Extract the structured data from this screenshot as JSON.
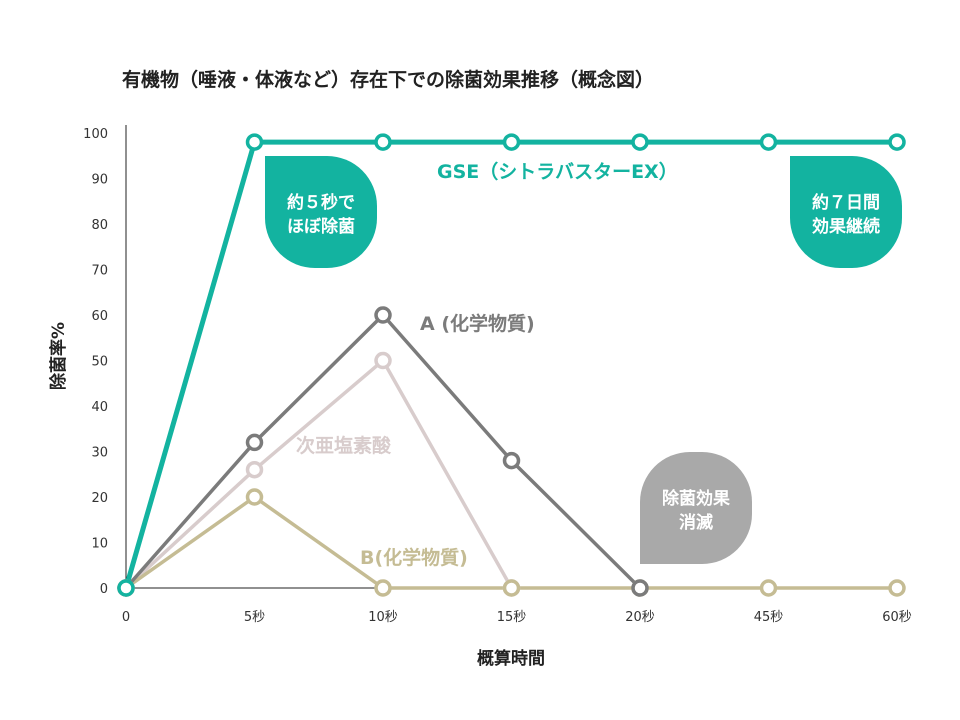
{
  "chart_data": {
    "type": "line",
    "title": "有機物（唾液・体液など）存在下での除菌効果推移（概念図）",
    "xlabel": "概算時間",
    "ylabel": "除菌率%",
    "categories": [
      "0",
      "5秒",
      "10秒",
      "15秒",
      "20秒",
      "45秒",
      "60秒"
    ],
    "ylim": [
      0,
      100
    ],
    "yticks": [
      0,
      10,
      20,
      30,
      40,
      50,
      60,
      70,
      80,
      90,
      100
    ],
    "grid": false,
    "series": [
      {
        "name": "GSE（シトラバスターEX）",
        "values": [
          0,
          98,
          98,
          98,
          98,
          98,
          98
        ],
        "color": "#13b3a0"
      },
      {
        "name": "A (化学物質)",
        "values": [
          0,
          32,
          60,
          28,
          0,
          null,
          null
        ],
        "color": "#7b7b7b"
      },
      {
        "name": "次亜塩素酸",
        "values": [
          0,
          26,
          50,
          0,
          null,
          null,
          null
        ],
        "color": "#d8cccc"
      },
      {
        "name": "B(化学物質)",
        "values": [
          0,
          20,
          0,
          0,
          0,
          0,
          0
        ],
        "color": "#c5bc94"
      }
    ],
    "callouts": [
      {
        "lines": [
          "約５秒で",
          "ほぼ除菌"
        ],
        "color": "#13b3a0"
      },
      {
        "lines": [
          "約７日間",
          "効果継続"
        ],
        "color": "#13b3a0"
      },
      {
        "lines": [
          "除菌効果",
          "消滅"
        ],
        "color": "#a9a9a9"
      }
    ]
  }
}
